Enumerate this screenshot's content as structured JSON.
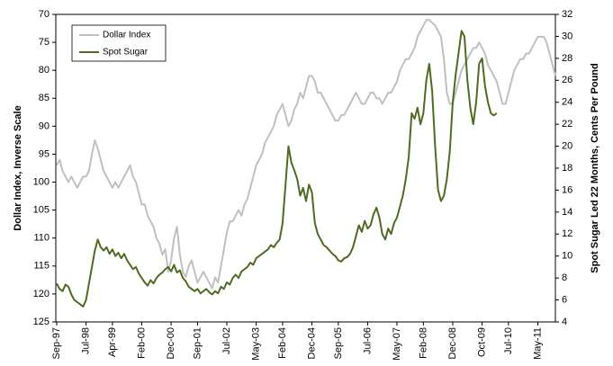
{
  "chart_data": {
    "type": "line",
    "y_label": "Dollar Index, Inverse Scale",
    "y2_label": "Spot Sugar Led 22 Months, Cents Per Pound",
    "categories": [
      "Sep-97",
      null,
      null,
      null,
      null,
      null,
      null,
      null,
      null,
      null,
      "Jul-98",
      null,
      null,
      null,
      null,
      null,
      null,
      null,
      null,
      "Apr-99",
      null,
      null,
      null,
      null,
      null,
      null,
      null,
      null,
      null,
      "Feb-00",
      null,
      null,
      null,
      null,
      null,
      null,
      null,
      null,
      null,
      "Dec-00",
      null,
      null,
      null,
      null,
      null,
      null,
      null,
      null,
      "Sep-01",
      null,
      null,
      null,
      null,
      null,
      null,
      null,
      null,
      null,
      "Jul-02",
      null,
      null,
      null,
      null,
      null,
      null,
      null,
      null,
      null,
      "May-03",
      null,
      null,
      null,
      null,
      null,
      null,
      null,
      null,
      "Feb-04",
      null,
      null,
      null,
      null,
      null,
      null,
      null,
      null,
      null,
      "Dec-04",
      null,
      null,
      null,
      null,
      null,
      null,
      null,
      null,
      "Sep-05",
      null,
      null,
      null,
      null,
      null,
      null,
      null,
      null,
      null,
      "Jul-06",
      null,
      null,
      null,
      null,
      null,
      null,
      null,
      null,
      null,
      "May-07",
      null,
      null,
      null,
      null,
      null,
      null,
      null,
      null,
      "Feb-08",
      null,
      null,
      null,
      null,
      null,
      null,
      null,
      null,
      null,
      "Dec-08",
      null,
      null,
      null,
      null,
      null,
      null,
      null,
      null,
      null,
      "Oct-09",
      null,
      null,
      null,
      null,
      null,
      null,
      null,
      null,
      "Jul-10",
      null,
      null,
      null,
      null,
      null,
      null,
      null,
      null,
      null,
      "May-11",
      null,
      null,
      null,
      null,
      null,
      null
    ],
    "series": [
      {
        "name": "Dollar Index",
        "color": "#c0c0c0",
        "axis": "y",
        "values": [
          97,
          96,
          98,
          99,
          100,
          99,
          100,
          101,
          100,
          99,
          99,
          98,
          95,
          92.5,
          94,
          96,
          98,
          99,
          100,
          101,
          100,
          101,
          100,
          99,
          98,
          97,
          99,
          100,
          102,
          104,
          104,
          106,
          107,
          108,
          110,
          111,
          113,
          112,
          116,
          114,
          110,
          108,
          113,
          116,
          117,
          115,
          114,
          116,
          118,
          117,
          116,
          117,
          118,
          119,
          117,
          118,
          115,
          112,
          109,
          107,
          107,
          106,
          105,
          106,
          104,
          103,
          101,
          99,
          97,
          96,
          95,
          93,
          92,
          91,
          90,
          88,
          87,
          86,
          88,
          90,
          89,
          87,
          86,
          84,
          85,
          83,
          81,
          81,
          82,
          84,
          84,
          85,
          86,
          87,
          88,
          89,
          89,
          88,
          88,
          87,
          86,
          85,
          84,
          85,
          86,
          86,
          85,
          84,
          84,
          85,
          85,
          86,
          85,
          84,
          84,
          83,
          82,
          80,
          79,
          78,
          78,
          77,
          76,
          74,
          73,
          72,
          71,
          71,
          71.5,
          72,
          73,
          74,
          78,
          84,
          86,
          86,
          84,
          82,
          80,
          79,
          78,
          77,
          76,
          76,
          75,
          76,
          77,
          79,
          80,
          81,
          82,
          84,
          86,
          86,
          84,
          82,
          80,
          79,
          78,
          78,
          77,
          77,
          76,
          75,
          74,
          74,
          74,
          75,
          77,
          79,
          81
        ]
      },
      {
        "name": "Spot Sugar",
        "color": "#4f6b22",
        "axis": "y2",
        "values": [
          7.5,
          7.0,
          6.8,
          7.4,
          7.2,
          6.5,
          6.0,
          5.8,
          5.6,
          5.4,
          6.0,
          7.5,
          9.0,
          10.5,
          11.5,
          10.8,
          10.5,
          10.8,
          10.2,
          10.6,
          10.0,
          10.3,
          9.8,
          10.2,
          9.6,
          9.2,
          8.8,
          9.0,
          8.4,
          8.0,
          7.6,
          7.3,
          7.8,
          7.5,
          8.0,
          8.3,
          8.5,
          8.8,
          9.0,
          8.6,
          9.2,
          8.5,
          8.7,
          8.0,
          7.7,
          7.2,
          7.0,
          6.8,
          7.0,
          6.6,
          6.8,
          7.0,
          6.7,
          6.5,
          6.8,
          6.6,
          7.2,
          7.0,
          7.6,
          7.4,
          8.0,
          8.3,
          8.0,
          8.6,
          8.8,
          9.0,
          9.4,
          9.2,
          9.8,
          10.0,
          10.2,
          10.4,
          10.6,
          11.0,
          10.8,
          11.2,
          11.5,
          13.0,
          16.5,
          20.0,
          18.5,
          17.8,
          17.0,
          15.5,
          16.2,
          15.0,
          16.5,
          15.8,
          13.0,
          12.0,
          11.5,
          11.0,
          10.8,
          10.5,
          10.2,
          10.0,
          9.6,
          9.5,
          9.8,
          9.9,
          10.2,
          10.8,
          11.8,
          12.8,
          12.2,
          13.2,
          12.5,
          12.8,
          13.8,
          14.4,
          13.5,
          12.0,
          11.5,
          12.5,
          12.0,
          13.0,
          13.5,
          14.5,
          15.5,
          17.0,
          19.0,
          23.0,
          22.5,
          23.5,
          22.0,
          23.0,
          26.0,
          27.5,
          25.0,
          20.0,
          16.0,
          15.0,
          15.5,
          17.0,
          19.5,
          24.0,
          26.5,
          28.5,
          30.5,
          30.0,
          26.0,
          23.5,
          22.0,
          24.0,
          27.5,
          28.0,
          25.5,
          24.0,
          23.0,
          22.8,
          23.0,
          null,
          null,
          null,
          null,
          null,
          null,
          null,
          null,
          null,
          null,
          null,
          null,
          null,
          null,
          null,
          null,
          null,
          null,
          null,
          null
        ]
      }
    ],
    "ylim": [
      70,
      125
    ],
    "yticks": [
      70,
      75,
      80,
      85,
      90,
      95,
      100,
      105,
      110,
      115,
      120,
      125
    ],
    "y_inverted": true,
    "y2lim": [
      4,
      32
    ],
    "y2ticks": [
      4,
      6,
      8,
      10,
      12,
      14,
      16,
      18,
      20,
      22,
      24,
      26,
      28,
      30,
      32
    ],
    "legend": "upper left"
  }
}
